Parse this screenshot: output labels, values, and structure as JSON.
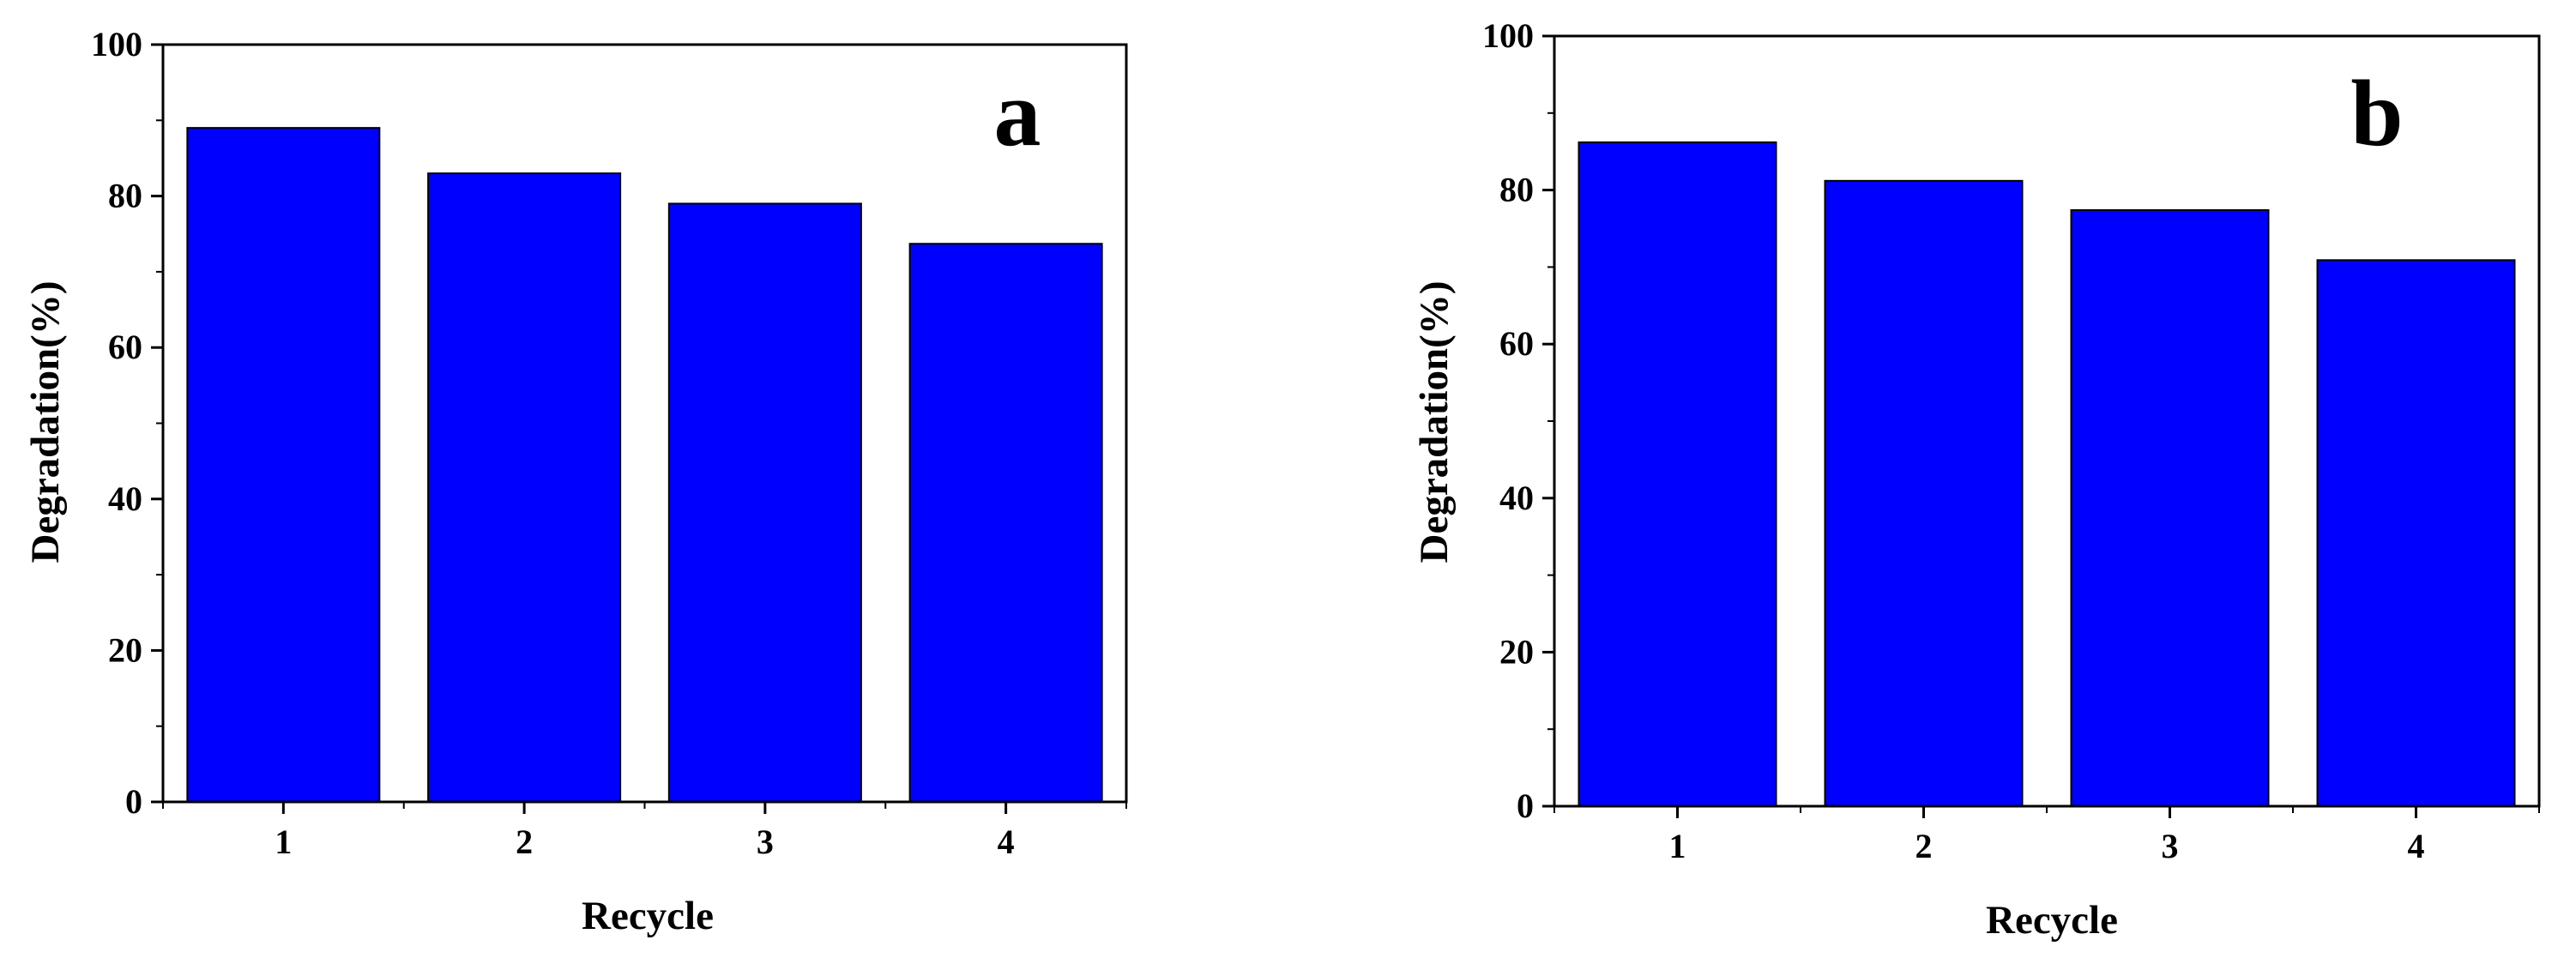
{
  "chart_data": [
    {
      "type": "bar",
      "panel_label": "a",
      "categories": [
        "1",
        "2",
        "3",
        "4"
      ],
      "values": [
        89,
        83,
        79,
        73.7
      ],
      "xlabel": "Recycle",
      "ylabel": "Degradation(%)",
      "ylim": [
        0,
        100
      ],
      "yticks": [
        "0",
        "20",
        "40",
        "60",
        "80",
        "100"
      ],
      "grid": false,
      "bar_color": "#0000ff"
    },
    {
      "type": "bar",
      "panel_label": "b",
      "categories": [
        "1",
        "2",
        "3",
        "4"
      ],
      "values": [
        86.2,
        81.2,
        77.4,
        70.9
      ],
      "xlabel": "Recycle",
      "ylabel": "Degradation(%)",
      "ylim": [
        0,
        100
      ],
      "yticks": [
        "0",
        "20",
        "40",
        "60",
        "80",
        "100"
      ],
      "grid": false,
      "bar_color": "#0000ff"
    }
  ]
}
